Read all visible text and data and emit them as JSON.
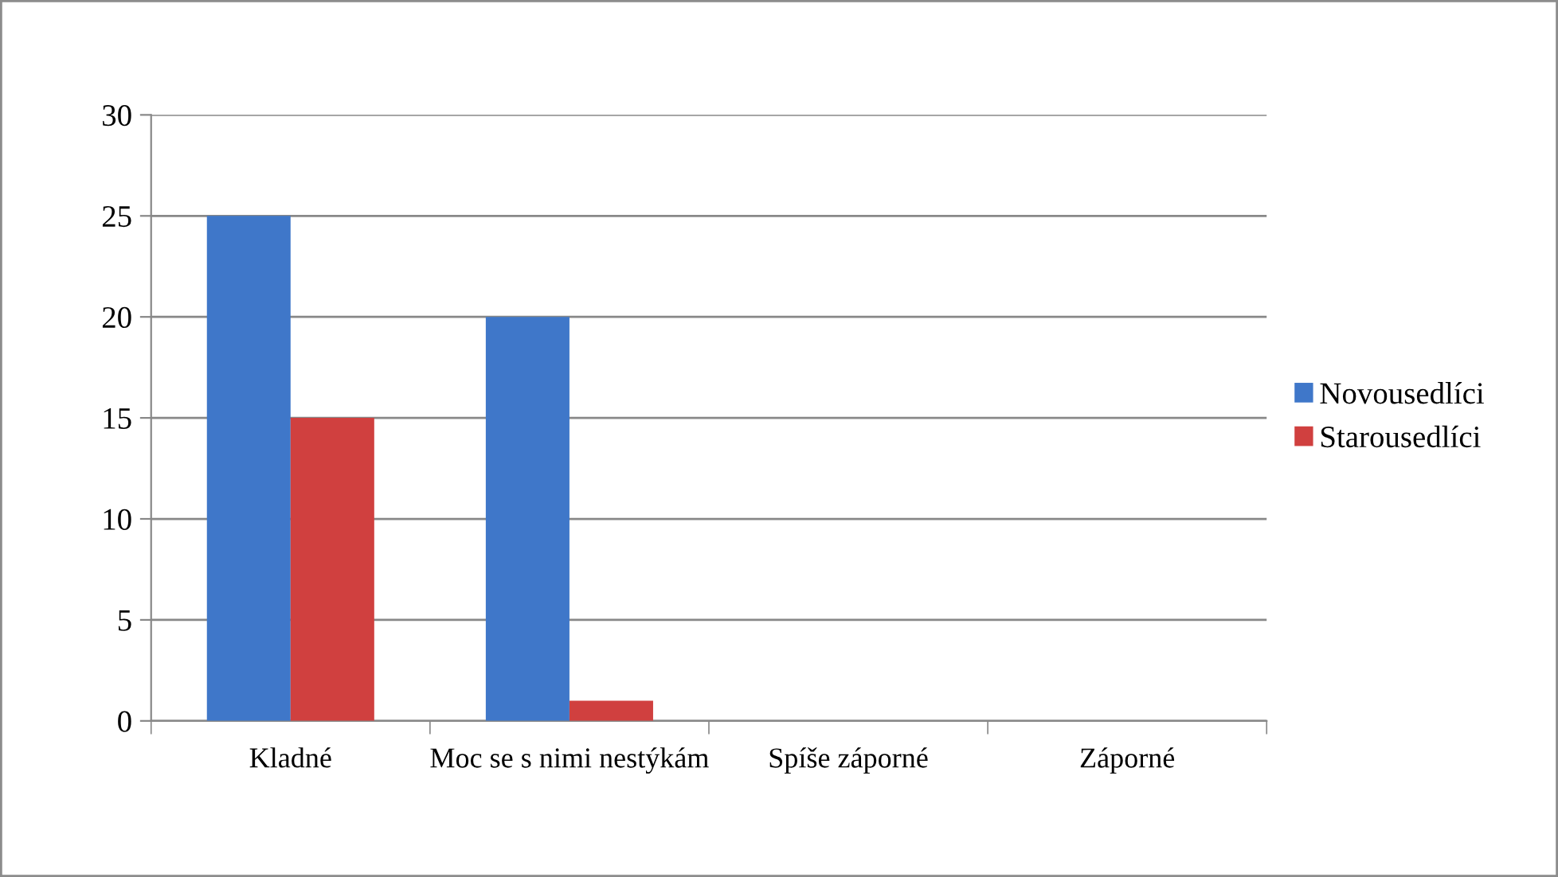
{
  "chart_data": {
    "type": "bar",
    "categories": [
      "Kladné",
      "Moc se s nimi nestýkám",
      "Spíše záporné",
      "Záporné"
    ],
    "series": [
      {
        "name": "Novousedlíci",
        "color": "#3f77c9",
        "values": [
          25,
          20,
          0,
          0
        ]
      },
      {
        "name": "Starousedlíci",
        "color": "#d0403f",
        "values": [
          15,
          1,
          0,
          0
        ]
      }
    ],
    "ylim": [
      0,
      30
    ],
    "yticks": [
      0,
      5,
      10,
      15,
      20,
      25,
      30
    ],
    "grid": "y",
    "legend": "right"
  }
}
